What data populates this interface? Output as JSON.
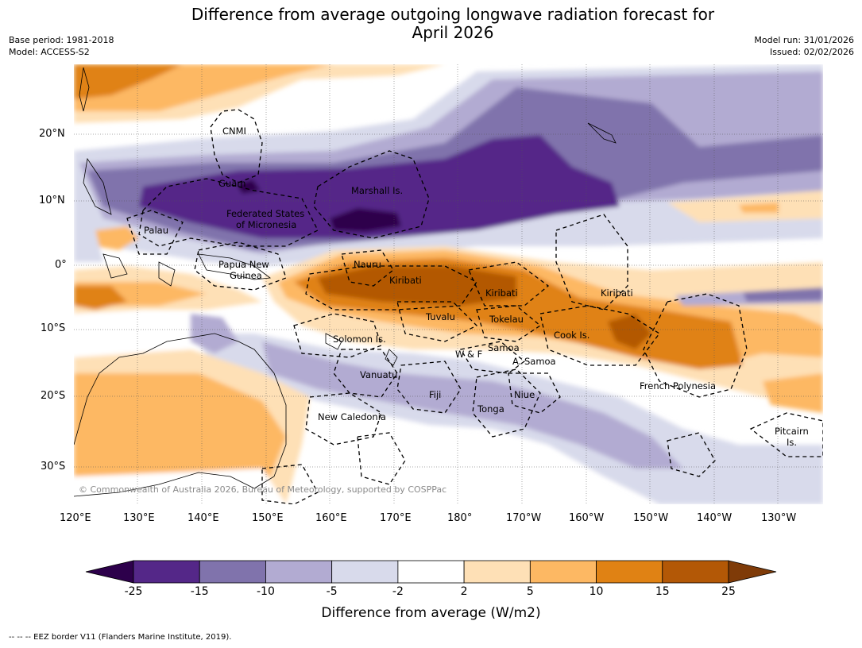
{
  "title_line1": "Difference from average outgoing longwave radiation forecast for",
  "title_line2": "April 2026",
  "base_period": "Base period: 1981-2018",
  "model": "Model: ACCESS-S2",
  "model_run": "Model run: 31/01/2026",
  "issued": "Issued: 02/02/2026",
  "copyright": "© Commonwealth of Australia 2026, Bureau of Meteorology, supported by COSPPac",
  "footer": "-- -- -- EEZ border V11 (Flanders Marine Institute, 2019).",
  "colorbar": {
    "label": "Difference from average (W/m2)",
    "ticks": [
      "-25",
      "-15",
      "-10",
      "-5",
      "-2",
      "2",
      "5",
      "10",
      "15",
      "25"
    ],
    "colors": [
      "#2d004b",
      "#542788",
      "#8073ac",
      "#b2abd2",
      "#d8daeb",
      "#ffffff",
      "#fee0b6",
      "#fdb863",
      "#e08214",
      "#b35806",
      "#7f3b08"
    ]
  },
  "axes": {
    "lon_labels": [
      "120°E",
      "130°E",
      "140°E",
      "150°E",
      "160°E",
      "170°E",
      "180°",
      "170°W",
      "160°W",
      "150°W",
      "140°W",
      "130°W"
    ],
    "lat_labels": [
      "20°N",
      "10°N",
      "0°",
      "10°S",
      "20°S",
      "30°S"
    ]
  },
  "places": {
    "cnmi": "CNMI",
    "guam": "Guam",
    "marshall": "Marshall Is.",
    "fsm1": "Federated States",
    "fsm2": "of Micronesia",
    "palau": "Palau",
    "png1": "Papua New",
    "png2": "Guinea",
    "nauru": "Nauru",
    "kiribati_w": "Kiribati",
    "kiribati_c": "Kiribati",
    "kiribati_e": "Kiribati",
    "tuvalu": "Tuvalu",
    "tokelau": "Tokelau",
    "cook": "Cook Is.",
    "solomon": "Solomon Is.",
    "wf": "W & F",
    "samoa": "Samoa",
    "asamoa": "A. Samoa",
    "vanuatu": "Vanuatu",
    "fiji": "Fiji",
    "niue": "Niue",
    "tonga": "Tonga",
    "fpoly": "French Polynesia",
    "newcal": "New Caledonia",
    "pitcairn1": "Pitcairn",
    "pitcairn2": "Is."
  }
}
